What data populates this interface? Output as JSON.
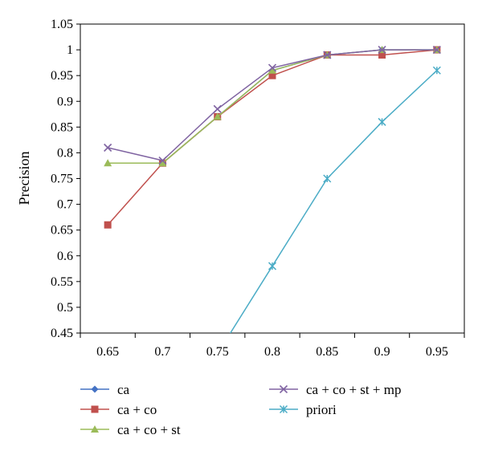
{
  "chart_data": {
    "type": "line",
    "title": "",
    "xlabel": "",
    "ylabel": "Precision",
    "x": [
      0.65,
      0.7,
      0.75,
      0.8,
      0.85,
      0.9,
      0.95
    ],
    "x_tick_labels": [
      "0.65",
      "0.7",
      "0.75",
      "0.8",
      "0.85",
      "0.9",
      "0.95"
    ],
    "xlim": [
      0.625,
      0.975
    ],
    "ylim": [
      0.45,
      1.05
    ],
    "y_ticks": [
      0.45,
      0.5,
      0.55,
      0.6,
      0.65,
      0.7,
      0.75,
      0.8,
      0.85,
      0.9,
      0.95,
      1,
      1.05
    ],
    "y_tick_labels": [
      "0.45",
      "0.5",
      "0.55",
      "0.6",
      "0.65",
      "0.7",
      "0.75",
      "0.8",
      "0.85",
      "0.9",
      "0.95",
      "1",
      "1.05"
    ],
    "grid": false,
    "legend_position": "bottom",
    "series": [
      {
        "name": "ca",
        "color": "#4472C4",
        "marker": "diamond",
        "values": [
          null,
          0.78,
          0.87,
          0.96,
          0.99,
          1.0,
          1.0
        ]
      },
      {
        "name": "ca + co",
        "color": "#C0504D",
        "marker": "square",
        "values": [
          0.66,
          0.78,
          0.87,
          0.95,
          0.99,
          0.99,
          1.0
        ]
      },
      {
        "name": "ca + co + st",
        "color": "#9BBB59",
        "marker": "triangle",
        "values": [
          0.78,
          0.78,
          0.87,
          0.96,
          0.99,
          1.0,
          1.0
        ]
      },
      {
        "name": "ca + co + st + mp",
        "color": "#8064A2",
        "marker": "x",
        "values": [
          0.81,
          0.785,
          0.885,
          0.965,
          0.99,
          1.0,
          1.0
        ]
      },
      {
        "name": "priori",
        "color": "#4BACC6",
        "marker": "asterisk",
        "values": [
          null,
          null,
          0.41,
          0.58,
          0.75,
          0.86,
          0.96
        ]
      }
    ]
  }
}
